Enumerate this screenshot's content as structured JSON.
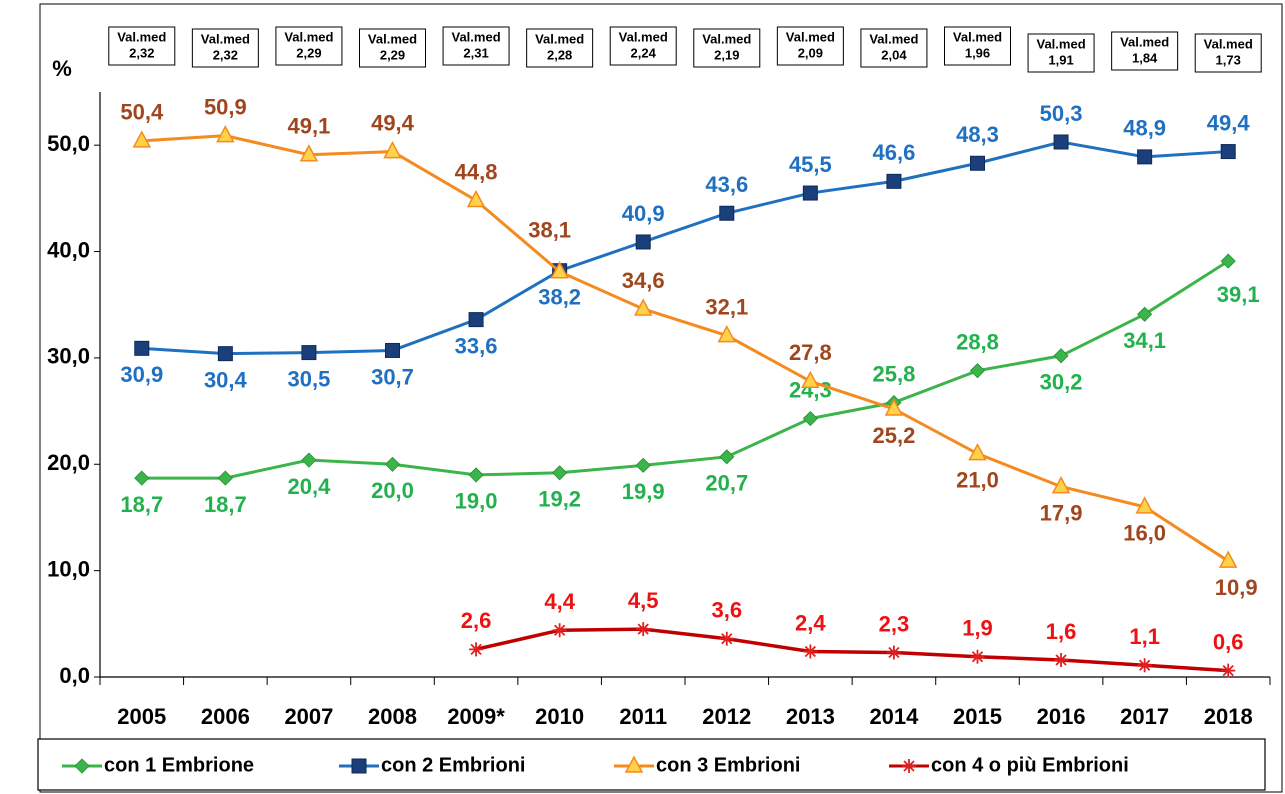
{
  "chart_data": {
    "type": "line",
    "y_unit_label": "%",
    "categories": [
      "2005",
      "2006",
      "2007",
      "2008",
      "2009*",
      "2010",
      "2011",
      "2012",
      "2013",
      "2014",
      "2015",
      "2016",
      "2017",
      "2018"
    ],
    "mean_boxes": {
      "title": "Val.med",
      "values": [
        "2,32",
        "2,32",
        "2,29",
        "2,29",
        "2,31",
        "2,28",
        "2,24",
        "2,19",
        "2,09",
        "2,04",
        "1,96",
        "1,91",
        "1,84",
        "1,73"
      ]
    },
    "ylim": [
      0,
      55
    ],
    "yticks": [
      {
        "value": 0,
        "label": "0,0"
      },
      {
        "value": 10,
        "label": "10,0"
      },
      {
        "value": 20,
        "label": "20,0"
      },
      {
        "value": 30,
        "label": "30,0"
      },
      {
        "value": 40,
        "label": "40,0"
      },
      {
        "value": 50,
        "label": "50,0"
      }
    ],
    "series": [
      {
        "name": "con 1 Embrione",
        "color": "#3bb54a",
        "label_color": "#22b14c",
        "marker": "diamond",
        "values": [
          18.7,
          18.7,
          20.4,
          20.0,
          19.0,
          19.2,
          19.9,
          20.7,
          24.3,
          25.8,
          28.8,
          30.2,
          34.1,
          39.1
        ],
        "value_labels": [
          "18,7",
          "18,7",
          "20,4",
          "20,0",
          "19,0",
          "19,2",
          "19,9",
          "20,7",
          "24,3",
          "25,8",
          "28,8",
          "30,2",
          "34,1",
          "39,1"
        ]
      },
      {
        "name": "con 2 Embrioni",
        "color": "#1f70c1",
        "label_color": "#1f70c1",
        "marker": "square",
        "values": [
          30.9,
          30.4,
          30.5,
          30.7,
          33.6,
          38.2,
          40.9,
          43.6,
          45.5,
          46.6,
          48.3,
          50.3,
          48.9,
          49.4
        ],
        "value_labels": [
          "30,9",
          "30,4",
          "30,5",
          "30,7",
          "33,6",
          "38,2",
          "40,9",
          "43,6",
          "45,5",
          "46,6",
          "48,3",
          "50,3",
          "48,9",
          "49,4"
        ]
      },
      {
        "name": "con 3 Embrioni",
        "color": "#f58a1f",
        "label_color": "#a0461e",
        "marker": "triangle",
        "values": [
          50.4,
          50.9,
          49.1,
          49.4,
          44.8,
          38.1,
          34.6,
          32.1,
          27.8,
          25.2,
          21.0,
          17.9,
          16.0,
          10.9
        ],
        "value_labels": [
          "50,4",
          "50,9",
          "49,1",
          "49,4",
          "44,8",
          "38,1",
          "34,6",
          "32,1",
          "27,8",
          "25,2",
          "21,0",
          "17,9",
          "16,0",
          "10,9"
        ]
      },
      {
        "name": "con 4 o più Embrioni",
        "color": "#c00000",
        "label_color": "#ee1111",
        "marker": "star",
        "values": [
          null,
          null,
          null,
          null,
          2.6,
          4.4,
          4.5,
          3.6,
          2.4,
          2.3,
          1.9,
          1.6,
          1.1,
          0.6
        ],
        "value_labels": [
          null,
          null,
          null,
          null,
          "2,6",
          "4,4",
          "4,5",
          "3,6",
          "2,4",
          "2,3",
          "1,9",
          "1,6",
          "1,1",
          "0,6"
        ]
      }
    ]
  }
}
